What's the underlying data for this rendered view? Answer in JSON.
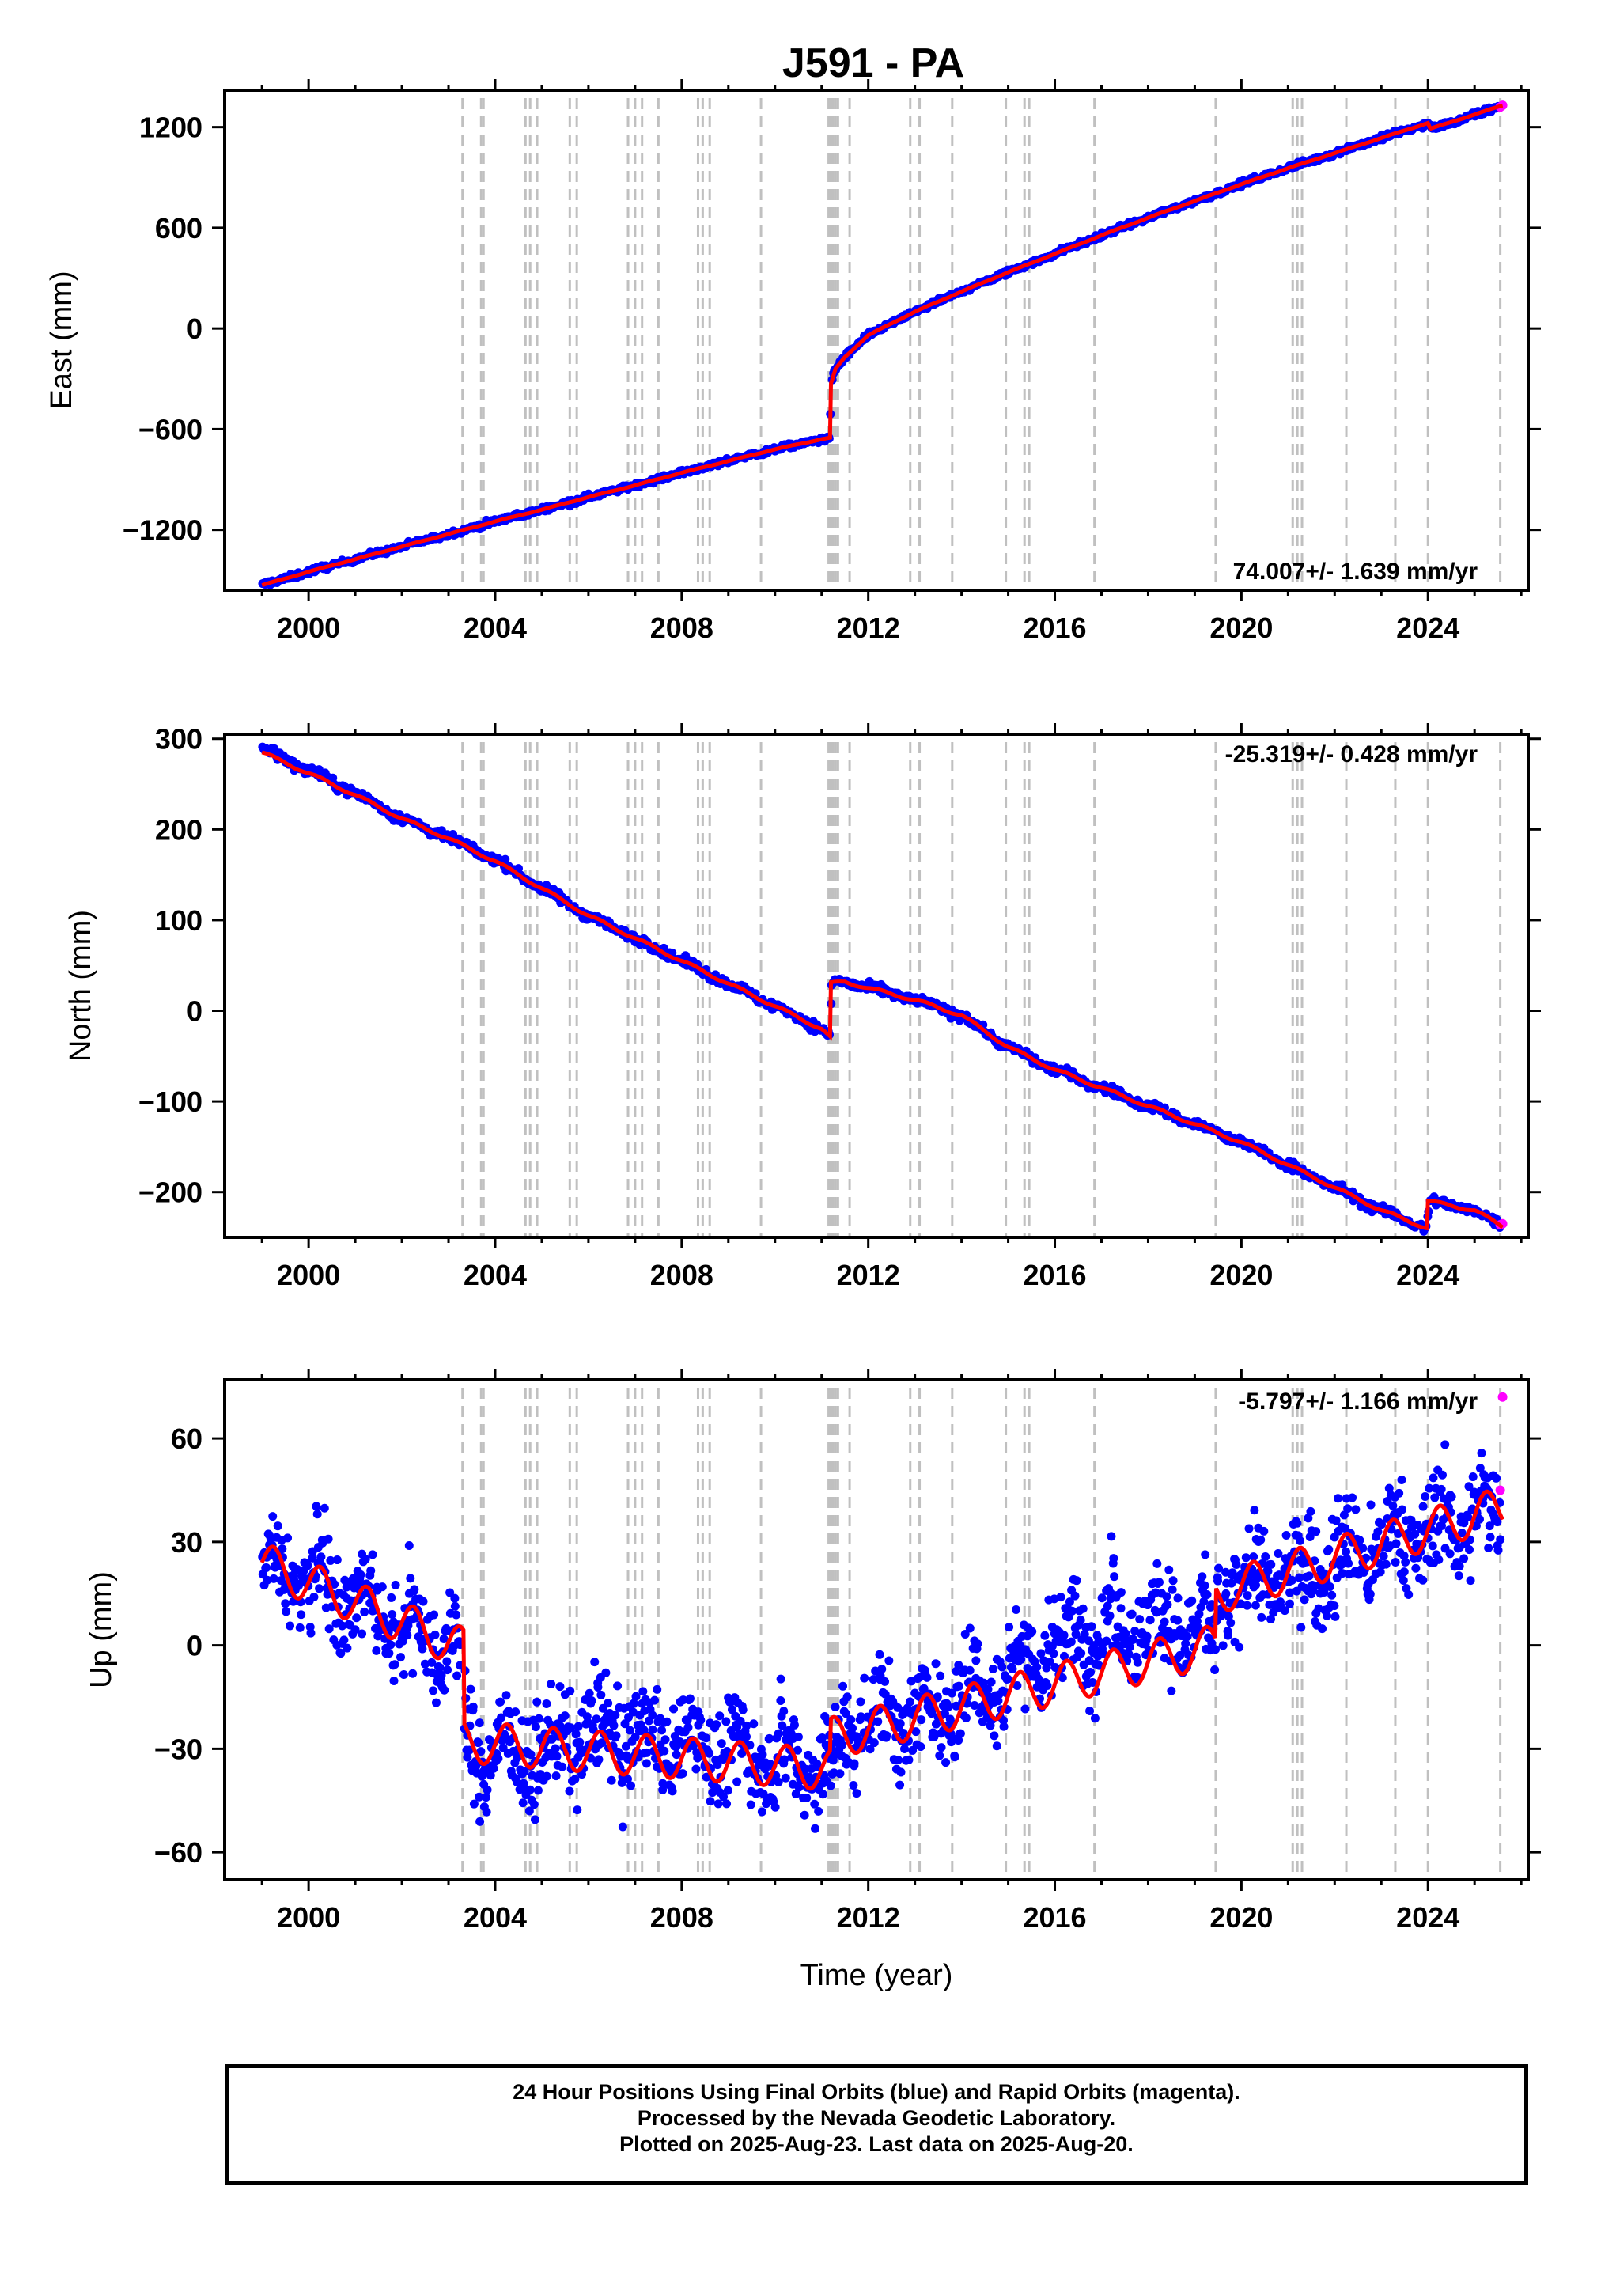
{
  "title": "J591 - PA",
  "colors": {
    "final_orbit_points": "#0000ff",
    "rapid_orbit_points": "#ff00ff",
    "model_fit": "#ff0000",
    "equipment_change_lines": "#c0c0c0"
  },
  "info_box": {
    "line1": "24 Hour Positions Using Final Orbits (blue) and Rapid Orbits (magenta).",
    "line2": "Processed by the Nevada Geodetic Laboratory.",
    "line3": "Plotted on 2025-Aug-23. Last data on 2025-Aug-20."
  },
  "chart_data": {
    "type": "scatter",
    "title": "J591 - PA",
    "xlabel": "Time (year)",
    "x_range": [
      1998.2,
      2026.15
    ],
    "x_ticks": [
      2000,
      2004,
      2008,
      2012,
      2016,
      2020,
      2024
    ],
    "event_lines_year": [
      2003.3,
      2003.7,
      2003.75,
      2004.65,
      2004.75,
      2004.9,
      2005.6,
      2005.75,
      2006.85,
      2007.0,
      2007.15,
      2007.5,
      2008.35,
      2008.45,
      2008.6,
      2009.7,
      2011.15,
      2011.2,
      2011.25,
      2011.3,
      2011.35,
      2011.6,
      2012.9,
      2013.1,
      2013.8,
      2014.95,
      2015.35,
      2015.45,
      2016.85,
      2019.45,
      2021.1,
      2021.2,
      2021.3,
      2022.25,
      2023.3,
      2024.0,
      2025.55
    ],
    "panels": [
      {
        "name": "East",
        "ylabel": "East (mm)",
        "y_range": [
          -1560,
          1420
        ],
        "y_ticks": [
          -1200,
          -600,
          0,
          600,
          1200
        ],
        "rate_label": "74.007+/- 1.639 mm/yr",
        "series": [
          {
            "name": "Final Orbits (blue)",
            "type": "scatter",
            "x": [
              1999.0,
              2000.0,
              2001.0,
              2002.0,
              2003.0,
              2004.0,
              2005.0,
              2006.0,
              2007.0,
              2008.0,
              2009.0,
              2010.0,
              2011.0,
              2011.18,
              2011.2,
              2011.3,
              2011.5,
              2012.0,
              2013.0,
              2014.0,
              2015.0,
              2016.0,
              2017.0,
              2018.0,
              2019.0,
              2020.0,
              2021.0,
              2022.0,
              2023.0,
              2024.0,
              2024.1,
              2025.0,
              2025.5
            ],
            "y": [
              -1530,
              -1450,
              -1375,
              -1300,
              -1225,
              -1150,
              -1080,
              -1005,
              -935,
              -860,
              -790,
              -720,
              -660,
              -650,
              -330,
              -240,
              -170,
              -40,
              100,
              220,
              335,
              445,
              555,
              660,
              760,
              860,
              955,
              1045,
              1135,
              1220,
              1190,
              1270,
              1320
            ]
          },
          {
            "name": "Rapid Orbits (magenta)",
            "type": "scatter",
            "x": [
              2025.55,
              2025.6
            ],
            "y": [
              1320,
              1330
            ]
          },
          {
            "name": "Model",
            "type": "line",
            "x": [
              1999.0,
              2000.0,
              2001.0,
              2002.0,
              2003.0,
              2004.0,
              2005.0,
              2006.0,
              2007.0,
              2008.0,
              2009.0,
              2010.0,
              2011.0,
              2011.19,
              2011.2,
              2011.3,
              2011.5,
              2012.0,
              2013.0,
              2014.0,
              2015.0,
              2016.0,
              2017.0,
              2018.0,
              2019.0,
              2020.0,
              2021.0,
              2022.0,
              2023.0,
              2024.0,
              2024.05,
              2025.0,
              2025.6
            ],
            "y": [
              -1530,
              -1450,
              -1375,
              -1300,
              -1225,
              -1150,
              -1080,
              -1005,
              -935,
              -860,
              -790,
              -720,
              -660,
              -652,
              -330,
              -240,
              -170,
              -40,
              100,
              220,
              335,
              445,
              555,
              660,
              760,
              860,
              955,
              1045,
              1135,
              1225,
              1190,
              1275,
              1330
            ]
          }
        ]
      },
      {
        "name": "North",
        "ylabel": "North (mm)",
        "y_range": [
          -250,
          305
        ],
        "y_ticks": [
          -200,
          -100,
          0,
          100,
          200,
          300
        ],
        "rate_label": "-25.319+/- 0.428 mm/yr",
        "series": [
          {
            "name": "Final Orbits (blue)",
            "type": "scatter",
            "x": [
              1999.0,
              2000.0,
              2001.0,
              2002.0,
              2003.0,
              2004.0,
              2005.0,
              2006.0,
              2007.0,
              2008.0,
              2009.0,
              2010.0,
              2011.0,
              2011.18,
              2011.22,
              2011.5,
              2012.0,
              2013.0,
              2014.0,
              2015.0,
              2016.0,
              2017.0,
              2018.0,
              2019.0,
              2020.0,
              2021.0,
              2022.0,
              2023.0,
              2023.95,
              2024.05,
              2025.0,
              2025.6
            ],
            "y": [
              290,
              265,
              240,
              212,
              190,
              167,
              135,
              105,
              80,
              55,
              30,
              5,
              -20,
              -30,
              32,
              32,
              25,
              12,
              -5,
              -40,
              -65,
              -85,
              -105,
              -125,
              -145,
              -170,
              -195,
              -220,
              -240,
              -210,
              -220,
              -238
            ]
          },
          {
            "name": "Rapid Orbits (magenta)",
            "type": "scatter",
            "x": [
              2025.55,
              2025.6
            ],
            "y": [
              -236,
              -235
            ]
          },
          {
            "name": "Model",
            "type": "line",
            "x": [
              1999.0,
              2000.0,
              2001.0,
              2002.0,
              2003.0,
              2004.0,
              2005.0,
              2006.0,
              2007.0,
              2008.0,
              2009.0,
              2010.0,
              2011.0,
              2011.19,
              2011.2,
              2011.5,
              2012.0,
              2013.0,
              2014.0,
              2015.0,
              2016.0,
              2017.0,
              2018.0,
              2019.0,
              2020.0,
              2021.0,
              2022.0,
              2023.0,
              2023.99,
              2024.0,
              2025.0,
              2025.6
            ],
            "y": [
              285,
              262,
              238,
              212,
              190,
              165,
              135,
              105,
              80,
              55,
              30,
              5,
              -20,
              -30,
              30,
              32,
              25,
              12,
              -5,
              -40,
              -65,
              -85,
              -105,
              -125,
              -145,
              -170,
              -195,
              -220,
              -240,
              -210,
              -220,
              -238
            ]
          }
        ]
      },
      {
        "name": "Up",
        "ylabel": "Up (mm)",
        "y_range": [
          -68,
          77
        ],
        "y_ticks": [
          -60,
          -30,
          0,
          30,
          60
        ],
        "rate_label": "-5.797+/- 1.166 mm/yr",
        "series": [
          {
            "name": "Final Orbits (blue)",
            "type": "scatter",
            "x": [
              1999.0,
              1999.5,
              2000.0,
              2000.5,
              2001.0,
              2001.5,
              2002.0,
              2002.5,
              2003.0,
              2003.3,
              2003.4,
              2004.0,
              2005.0,
              2006.0,
              2007.0,
              2008.0,
              2009.0,
              2010.0,
              2011.0,
              2011.2,
              2011.5,
              2012.0,
              2013.0,
              2014.0,
              2015.0,
              2016.0,
              2017.0,
              2018.0,
              2019.0,
              2019.45,
              2019.5,
              2020.0,
              2021.0,
              2022.0,
              2023.0,
              2024.0,
              2025.0,
              2025.5
            ],
            "y": [
              25,
              22,
              20,
              16,
              12,
              10,
              6,
              4,
              0,
              -2,
              -30,
              -30,
              -32,
              -25,
              -27,
              -28,
              -30,
              -32,
              -35,
              -40,
              -25,
              -20,
              -22,
              -15,
              -8,
              0,
              5,
              8,
              5,
              2,
              12,
              18,
              20,
              24,
              28,
              33,
              38,
              38
            ]
          },
          {
            "name": "Rapid Orbits (magenta)",
            "type": "scatter",
            "x": [
              2025.55,
              2025.6
            ],
            "y": [
              45,
              72
            ]
          },
          {
            "name": "Model",
            "type": "line",
            "x": [
              1999.0,
              2003.33,
              2003.34,
              2011.18,
              2011.19,
              2019.45,
              2019.46,
              2025.6
            ],
            "y": [
              24,
              -1,
              -28,
              -36,
              -27,
              0,
              15,
              40
            ]
          }
        ]
      }
    ]
  }
}
